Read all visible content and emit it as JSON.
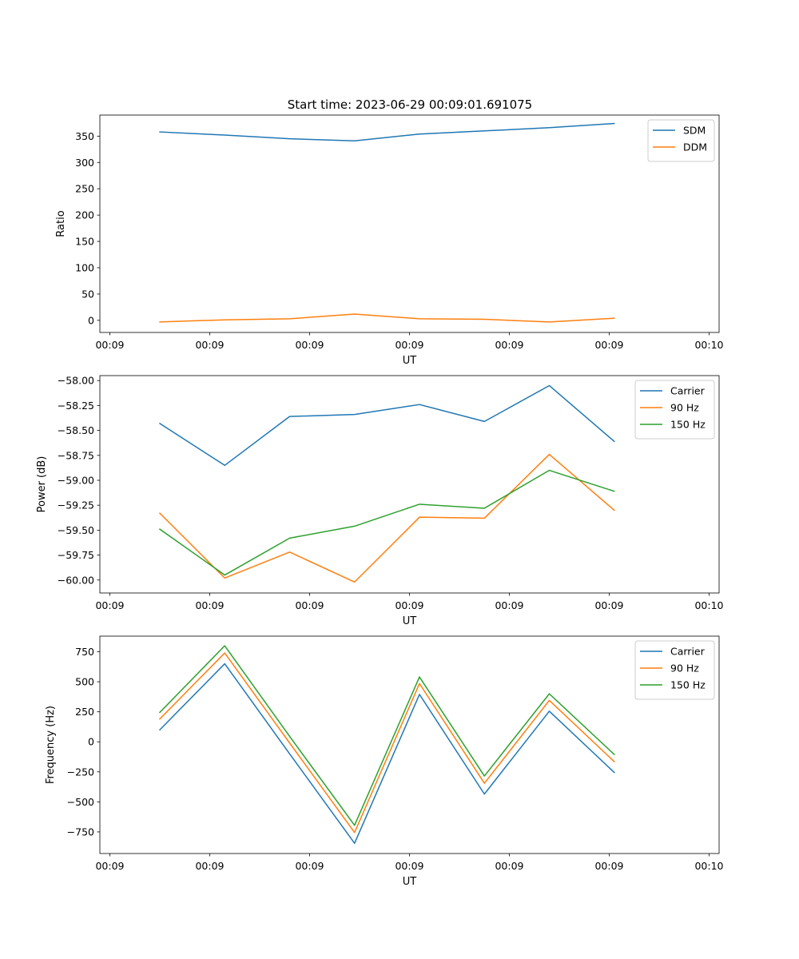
{
  "title": "Start time: 2023-06-29 00:09:01.691075",
  "chart_data": [
    {
      "type": "line",
      "xlabel": "UT",
      "ylabel": "Ratio",
      "x_tick_labels": [
        "00:09",
        "00:09",
        "00:09",
        "00:09",
        "00:09",
        "00:09",
        "00:10"
      ],
      "xlim": [
        0,
        60
      ],
      "ylim": [
        -23,
        390
      ],
      "y_ticks": [
        0,
        50,
        100,
        150,
        200,
        250,
        300,
        350
      ],
      "y_tick_labels": [
        "0",
        "50",
        "100",
        "150",
        "200",
        "250",
        "300",
        "350"
      ],
      "x": [
        5,
        11.5,
        18,
        24.5,
        31,
        37.5,
        44,
        50.5
      ],
      "legend_position": "upper-right",
      "series": [
        {
          "name": "SDM",
          "color": "#1f77b4",
          "values": [
            358,
            352,
            345,
            341,
            354,
            360,
            366,
            374
          ]
        },
        {
          "name": "DDM",
          "color": "#ff7f0e",
          "values": [
            -3,
            1,
            3,
            12,
            3,
            2,
            -3,
            4
          ]
        }
      ]
    },
    {
      "type": "line",
      "xlabel": "UT",
      "ylabel": "Power (dB)",
      "x_tick_labels": [
        "00:09",
        "00:09",
        "00:09",
        "00:09",
        "00:09",
        "00:09",
        "00:10"
      ],
      "xlim": [
        0,
        60
      ],
      "ylim": [
        -60.13,
        -57.95
      ],
      "y_ticks": [
        -60.0,
        -59.75,
        -59.5,
        -59.25,
        -59.0,
        -58.75,
        -58.5,
        -58.25,
        -58.0
      ],
      "y_tick_labels": [
        "−60.00",
        "−59.75",
        "−59.50",
        "−59.25",
        "−59.00",
        "−58.75",
        "−58.50",
        "−58.25",
        "−58.00"
      ],
      "x": [
        5,
        11.5,
        18,
        24.5,
        31,
        37.5,
        44,
        50.5
      ],
      "legend_position": "upper-right",
      "series": [
        {
          "name": "Carrier",
          "color": "#1f77b4",
          "values": [
            -58.43,
            -58.85,
            -58.36,
            -58.34,
            -58.24,
            -58.41,
            -58.05,
            -58.61
          ]
        },
        {
          "name": "90 Hz",
          "color": "#ff7f0e",
          "values": [
            -59.33,
            -59.98,
            -59.72,
            -60.02,
            -59.37,
            -59.38,
            -58.74,
            -59.3
          ]
        },
        {
          "name": "150 Hz",
          "color": "#2ca02c",
          "values": [
            -59.49,
            -59.95,
            -59.58,
            -59.46,
            -59.24,
            -59.28,
            -58.9,
            -59.11
          ]
        }
      ]
    },
    {
      "type": "line",
      "xlabel": "UT",
      "ylabel": "Frequency (Hz)",
      "x_tick_labels": [
        "00:09",
        "00:09",
        "00:09",
        "00:09",
        "00:09",
        "00:09",
        "00:10"
      ],
      "xlim": [
        0,
        60
      ],
      "ylim": [
        -930,
        880
      ],
      "y_ticks": [
        -750,
        -500,
        -250,
        0,
        250,
        500,
        750
      ],
      "y_tick_labels": [
        "−750",
        "−500",
        "−250",
        "0",
        "250",
        "500",
        "750"
      ],
      "x": [
        5,
        11.5,
        18,
        24.5,
        31,
        37.5,
        44,
        50.5
      ],
      "legend_position": "upper-right",
      "series": [
        {
          "name": "Carrier",
          "color": "#1f77b4",
          "values": [
            100,
            650,
            -100,
            -845,
            395,
            -435,
            255,
            -255
          ]
        },
        {
          "name": "90 Hz",
          "color": "#ff7f0e",
          "values": [
            190,
            740,
            -10,
            -755,
            485,
            -345,
            345,
            -165
          ]
        },
        {
          "name": "150 Hz",
          "color": "#2ca02c",
          "values": [
            245,
            800,
            45,
            -695,
            540,
            -285,
            400,
            -105
          ]
        }
      ]
    }
  ]
}
